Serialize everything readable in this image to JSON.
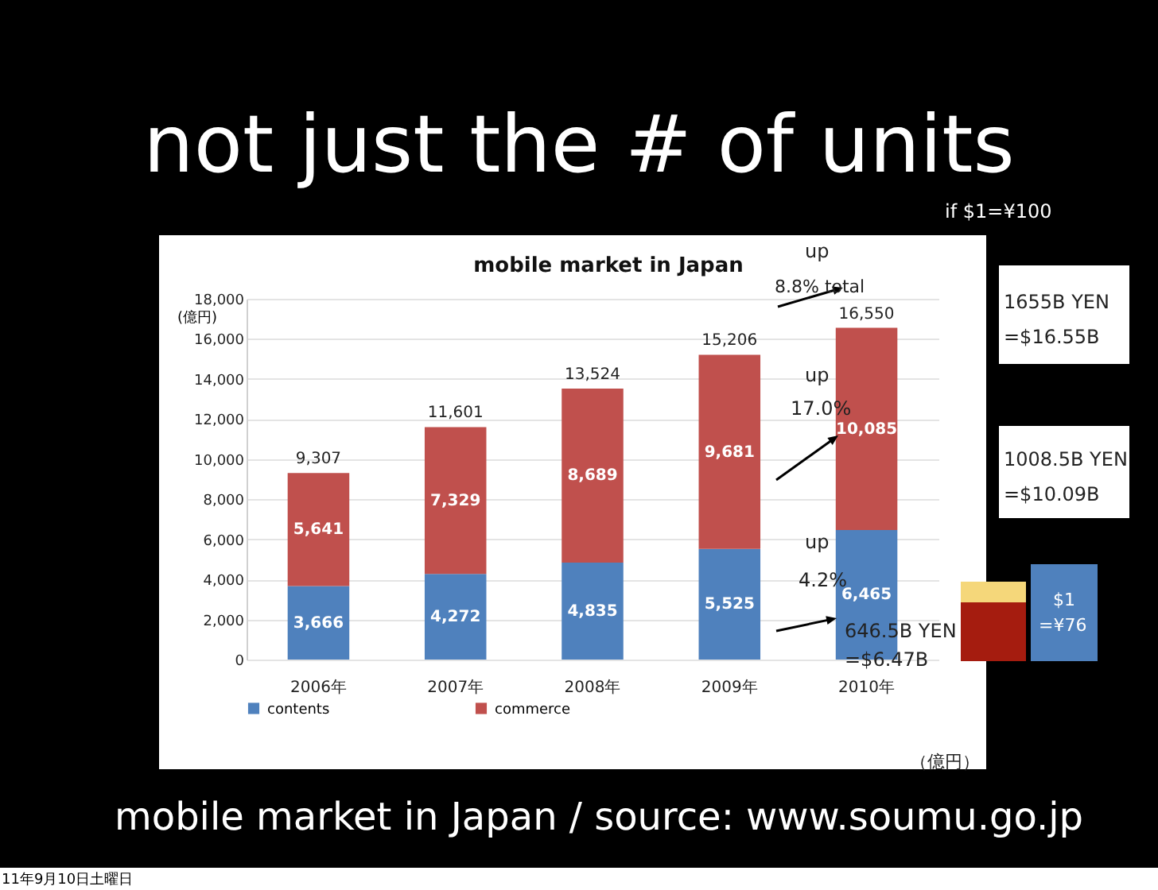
{
  "chart_data": {
    "type": "bar",
    "title": "not just the # of units",
    "subtitle": "mobile market in Japan",
    "ylabel": "(億円)",
    "categories": [
      "2006年",
      "2007年",
      "2008年",
      "2009年",
      "2010年"
    ],
    "series": [
      {
        "name": "contents",
        "color": "#4f81bd",
        "values": [
          3666,
          4272,
          4835,
          5525,
          6465
        ],
        "value_labels": [
          "3,666",
          "4,272",
          "4,835",
          "5,525",
          "6,465"
        ]
      },
      {
        "name": "commerce",
        "color": "#c0504d",
        "values": [
          5641,
          7329,
          8689,
          9681,
          10085
        ],
        "value_labels": [
          "5,641",
          "7,329",
          "8,689",
          "9,681",
          "10,085"
        ]
      }
    ],
    "stacked": true,
    "totals": [
      "9,307",
      "11,601",
      "13,524",
      "15,206",
      "16,550"
    ],
    "ylim": [
      0,
      18000
    ],
    "yticks": [
      0,
      {
        "value": 2000,
        "label": "2,000"
      },
      {
        "value": 4000,
        "label": "4,000"
      },
      {
        "value": 6000,
        "label": "6,000"
      },
      {
        "value": 8000,
        "label": "8,000"
      },
      {
        "value": 10000,
        "label": "10,000"
      },
      {
        "value": 12000,
        "label": "12,000"
      },
      {
        "value": 14000,
        "label": "14,000"
      },
      {
        "value": 16000,
        "label": "16,000"
      },
      {
        "value": 18000,
        "label": "18,000"
      }
    ],
    "grid": "y",
    "legend": "bottom",
    "annotations": [
      "if $1=¥100",
      "up",
      "8.8% total",
      "up",
      "17.0%",
      "up",
      "4.2%",
      "1655B YEN",
      "=$16.55B",
      "1008.5B YEN",
      "=$10.09B",
      "646.5B YEN",
      "=$6.47B",
      "$1",
      "=¥76",
      "（億円）",
      "mobile market in Japan / source: www.soumu.go.jp",
      "11年9月10日土曜日"
    ]
  }
}
